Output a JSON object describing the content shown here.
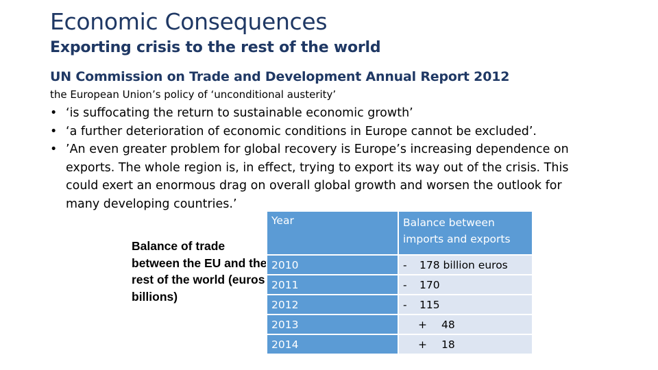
{
  "slide": {
    "title": "Economic Consequences",
    "subtitle": "Exporting crisis to the rest of the world",
    "report_heading": "UN Commission on Trade and Development Annual Report 2012",
    "policy_line": "the European Union’s policy of ‘unconditional austerity’",
    "bullet_char": "•",
    "bullets": [
      "‘is suffocating the return to sustainable economic growth’",
      "‘a further deterioration of economic conditions in Europe cannot be excluded’.",
      " ’An even greater problem for global recovery is Europe’s increasing dependence on exports. The whole region is, in effect, trying to export its way out of the crisis. This could exert an enormous drag on overall global growth and worsen the outlook for many developing countries.’"
    ]
  },
  "table": {
    "side_label": "Balance of trade between the EU and the rest of the world (euros billions)",
    "header_year": "Year",
    "header_balance": "Balance between imports and exports",
    "rows": [
      {
        "year": "2010",
        "sign": "-",
        "amount": "178 billion euros"
      },
      {
        "year": "2011",
        "sign": "-",
        "amount": "170"
      },
      {
        "year": "2012",
        "sign": "-",
        "amount": "115"
      },
      {
        "year": "2013",
        "sign": "+",
        "amount": "48"
      },
      {
        "year": "2014",
        "sign": "+",
        "amount": "18"
      }
    ]
  },
  "colors": {
    "title": "#1f3864",
    "table_header": "#5b9bd5",
    "table_value_cell": "#dde5f2"
  }
}
